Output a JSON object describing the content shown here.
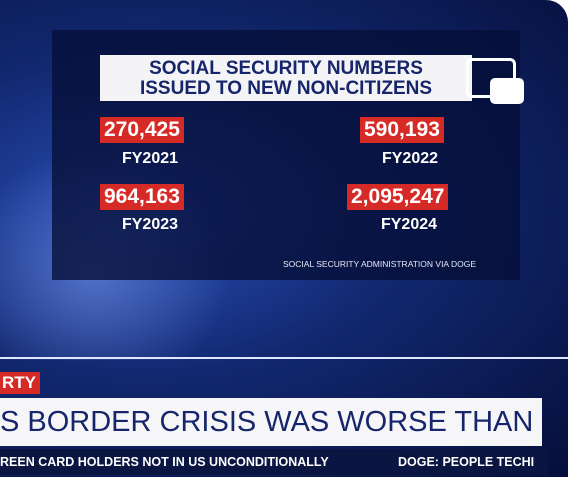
{
  "graphic": {
    "title_lines": [
      "SOCIAL SECURITY NUMBERS",
      "ISSUED TO NEW NON-CITIZENS"
    ],
    "stats": [
      {
        "value": "270,425",
        "label": "FY2021"
      },
      {
        "value": "590,193",
        "label": "FY2022"
      },
      {
        "value": "964,163",
        "label": "FY2023"
      },
      {
        "value": "2,095,247",
        "label": "FY2024"
      }
    ],
    "source": "SOCIAL SECURITY ADMINISTRATION VIA DOGE"
  },
  "lower_third": {
    "tag": "RTY",
    "headline": "S BORDER CRISIS WAS WORSE THAN EXPECTED",
    "ticker": [
      "REEN CARD HOLDERS NOT IN US UNCONDITIONALLY",
      "DOGE: PEOPLE TECHI"
    ]
  }
}
